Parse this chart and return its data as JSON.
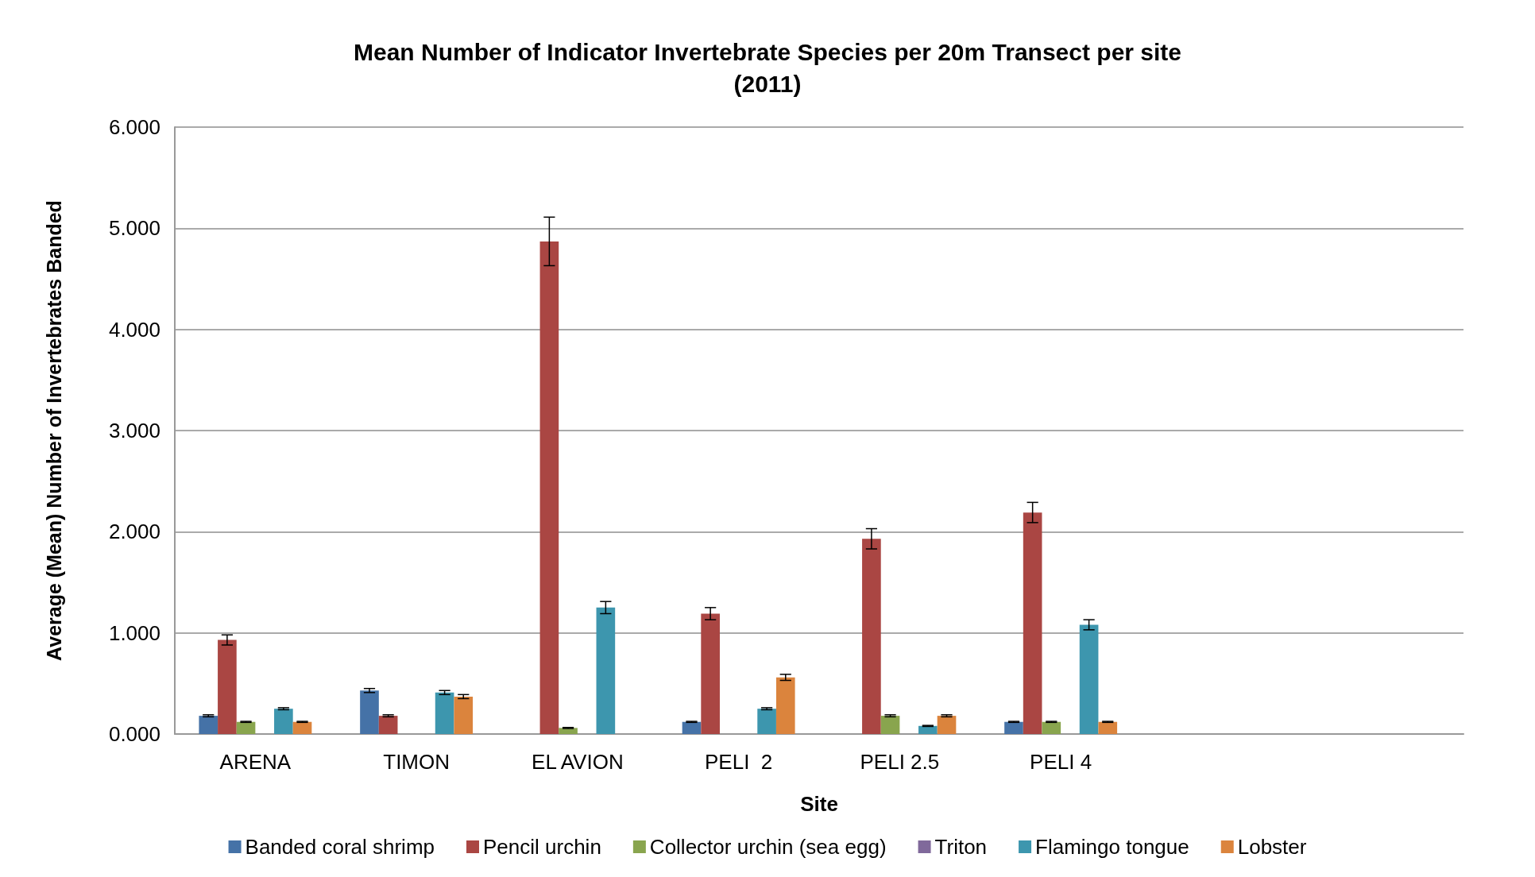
{
  "chart_data": {
    "type": "bar",
    "title": "Mean Number of Indicator Invertebrate Species per 20m Transect per site\n(2011)",
    "xlabel": "Site",
    "ylabel": "Average (Mean) Number of Invertebrates Banded",
    "categories": [
      "ARENA",
      "TIMON",
      "EL AVION",
      "PELI  2",
      "PELI 2.5",
      "PELI 4",
      null,
      null
    ],
    "series": [
      {
        "name": "Banded coral shrimp",
        "color": "#4572a7",
        "values": [
          0.18,
          0.43,
          null,
          0.12,
          null,
          0.12,
          null,
          null
        ],
        "errors": [
          0.01,
          0.02,
          null,
          0.005,
          null,
          0.005,
          null,
          null
        ]
      },
      {
        "name": "Pencil urchin",
        "color": "#aa4643",
        "values": [
          0.93,
          0.18,
          4.87,
          1.19,
          1.93,
          2.19,
          null,
          null
        ],
        "errors": [
          0.05,
          0.01,
          0.24,
          0.06,
          0.1,
          0.1,
          null,
          null
        ]
      },
      {
        "name": "Collector urchin (sea egg)",
        "color": "#89a54e",
        "values": [
          0.12,
          null,
          0.06,
          null,
          0.18,
          0.12,
          null,
          null
        ],
        "errors": [
          0.005,
          null,
          0.005,
          null,
          0.01,
          0.005,
          null,
          null
        ]
      },
      {
        "name": "Triton",
        "color": "#80699b",
        "values": [
          null,
          null,
          null,
          null,
          null,
          null,
          null,
          null
        ]
      },
      {
        "name": "Flamingo tongue",
        "color": "#3d96ae",
        "values": [
          0.25,
          0.41,
          1.25,
          0.25,
          0.08,
          1.08,
          null,
          null
        ],
        "errors": [
          0.01,
          0.02,
          0.06,
          0.01,
          0.005,
          0.05,
          null,
          null
        ]
      },
      {
        "name": "Lobster",
        "color": "#db843d",
        "values": [
          0.12,
          0.37,
          null,
          0.56,
          0.18,
          0.12,
          null,
          null
        ],
        "errors": [
          0.005,
          0.02,
          null,
          0.03,
          0.01,
          0.005,
          null,
          null
        ]
      }
    ],
    "ylim": [
      0,
      6
    ],
    "yticks": [
      {
        "value": 0,
        "label": "0.000"
      },
      {
        "value": 1,
        "label": "1.000"
      },
      {
        "value": 2,
        "label": "2.000"
      },
      {
        "value": 3,
        "label": "3.000"
      },
      {
        "value": 4,
        "label": "4.000"
      },
      {
        "value": 5,
        "label": "5.000"
      },
      {
        "value": 6,
        "label": "6.000"
      }
    ],
    "grid": "y",
    "legend": "bottom"
  }
}
